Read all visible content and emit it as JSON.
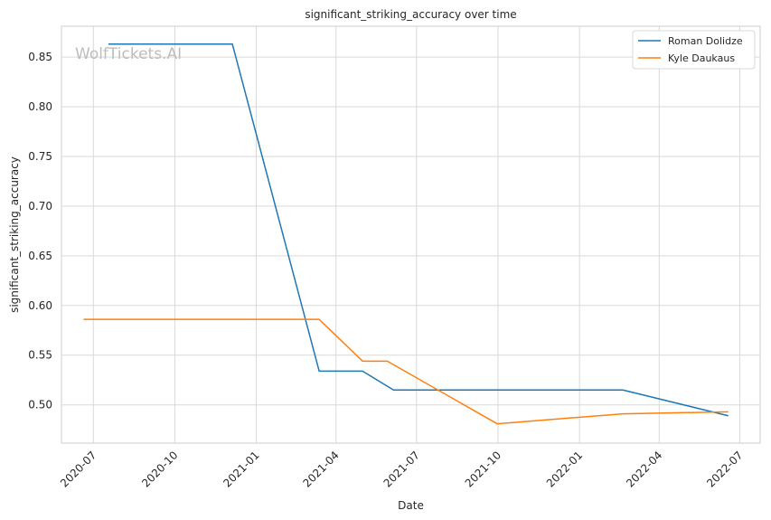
{
  "chart_data": {
    "type": "line",
    "title": "significant_striking_accuracy over time",
    "xlabel": "Date",
    "ylabel": "significant_striking_accuracy",
    "watermark": "WolfTickets.AI",
    "x_range": [
      "2020-05-26",
      "2022-07-24"
    ],
    "ylim": [
      0.4615,
      0.881
    ],
    "x_ticks": [
      {
        "date": "2020-07-01",
        "label": "2020-07"
      },
      {
        "date": "2020-10-01",
        "label": "2020-10"
      },
      {
        "date": "2021-01-01",
        "label": "2021-01"
      },
      {
        "date": "2021-04-01",
        "label": "2021-04"
      },
      {
        "date": "2021-07-01",
        "label": "2021-07"
      },
      {
        "date": "2021-10-01",
        "label": "2021-10"
      },
      {
        "date": "2022-01-01",
        "label": "2022-01"
      },
      {
        "date": "2022-04-01",
        "label": "2022-04"
      },
      {
        "date": "2022-07-01",
        "label": "2022-07"
      }
    ],
    "y_ticks": [
      {
        "value": 0.5,
        "label": "0.50"
      },
      {
        "value": 0.55,
        "label": "0.55"
      },
      {
        "value": 0.6,
        "label": "0.60"
      },
      {
        "value": 0.65,
        "label": "0.65"
      },
      {
        "value": 0.7,
        "label": "0.70"
      },
      {
        "value": 0.75,
        "label": "0.75"
      },
      {
        "value": 0.8,
        "label": "0.80"
      },
      {
        "value": 0.85,
        "label": "0.85"
      }
    ],
    "grid": true,
    "legend_position": "top-right",
    "series": [
      {
        "name": "Roman Dolidze",
        "color": "#1f77b4",
        "points": [
          {
            "x": "2020-07-18",
            "y": 0.863
          },
          {
            "x": "2020-12-05",
            "y": 0.863
          },
          {
            "x": "2021-03-13",
            "y": 0.534
          },
          {
            "x": "2021-05-01",
            "y": 0.534
          },
          {
            "x": "2021-06-05",
            "y": 0.515
          },
          {
            "x": "2022-02-19",
            "y": 0.515
          },
          {
            "x": "2022-06-18",
            "y": 0.489
          }
        ]
      },
      {
        "name": "Kyle Daukaus",
        "color": "#ff7f0e",
        "points": [
          {
            "x": "2020-06-20",
            "y": 0.586
          },
          {
            "x": "2021-03-13",
            "y": 0.586
          },
          {
            "x": "2021-05-01",
            "y": 0.544
          },
          {
            "x": "2021-05-29",
            "y": 0.544
          },
          {
            "x": "2021-09-30",
            "y": 0.481
          },
          {
            "x": "2022-02-19",
            "y": 0.491
          },
          {
            "x": "2022-06-18",
            "y": 0.493
          }
        ]
      }
    ]
  }
}
